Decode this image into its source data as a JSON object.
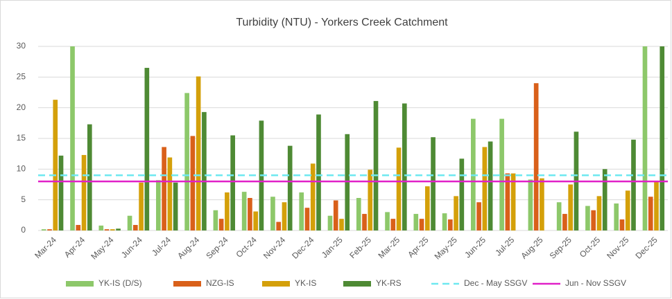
{
  "chart_data": {
    "type": "bar",
    "title": "Turbidity (NTU) - Yorkers Creek Catchment",
    "categories": [
      "Mar-24",
      "Apr-24",
      "May-24",
      "Jun-24",
      "Jul-24",
      "Aug-24",
      "Sep-24",
      "Oct-24",
      "Nov-24",
      "Dec-24",
      "Jan-25",
      "Feb-25",
      "Mar-25",
      "Apr-25",
      "May-25",
      "Jun-25",
      "Jul-25",
      "Aug-25",
      "Sep-25",
      "Oct-25",
      "Nov-25",
      "Dec-25"
    ],
    "series": [
      {
        "name": "YK-IS (D/S)",
        "color": "#8dc86a",
        "values": [
          0.2,
          30,
          0.8,
          2.4,
          8.2,
          22.4,
          3.3,
          6.3,
          5.5,
          6.2,
          2.4,
          5.3,
          3.0,
          2.7,
          2.8,
          18.2,
          18.2,
          8.3,
          4.6,
          4.0,
          4.4,
          30
        ]
      },
      {
        "name": "NZG-IS",
        "color": "#d9601a",
        "values": [
          0.2,
          0.9,
          0.2,
          0.9,
          13.6,
          15.4,
          1.9,
          5.3,
          1.4,
          3.7,
          4.9,
          2.7,
          1.9,
          1.9,
          1.8,
          4.6,
          9.3,
          24.0,
          2.7,
          3.3,
          1.8,
          5.5
        ]
      },
      {
        "name": "YK-IS",
        "color": "#d4a00a",
        "values": [
          21.3,
          12.3,
          0.2,
          7.8,
          11.9,
          25.1,
          6.2,
          3.1,
          4.6,
          10.9,
          1.9,
          9.9,
          13.5,
          7.2,
          5.6,
          13.6,
          9.3,
          8.5,
          7.5,
          5.6,
          6.5,
          8.1
        ]
      },
      {
        "name": "YK-RS",
        "color": "#4e8a34",
        "values": [
          12.2,
          17.3,
          0.3,
          26.5,
          7.8,
          19.3,
          15.5,
          17.9,
          13.8,
          18.9,
          15.7,
          21.1,
          20.7,
          15.2,
          11.7,
          14.5,
          null,
          null,
          16.1,
          10.0,
          14.8,
          30
        ]
      }
    ],
    "reference_lines": [
      {
        "name": "Dec - May SSGV",
        "color": "#6ee8f0",
        "value": 9,
        "style": "dashed"
      },
      {
        "name": "Jun - Nov SSGV",
        "color": "#e020c8",
        "value": 8,
        "style": "solid"
      }
    ],
    "ylim": [
      0,
      30
    ],
    "yticks": [
      0,
      5,
      10,
      15,
      20,
      25,
      30
    ],
    "grid": true,
    "legend": "bottom"
  }
}
